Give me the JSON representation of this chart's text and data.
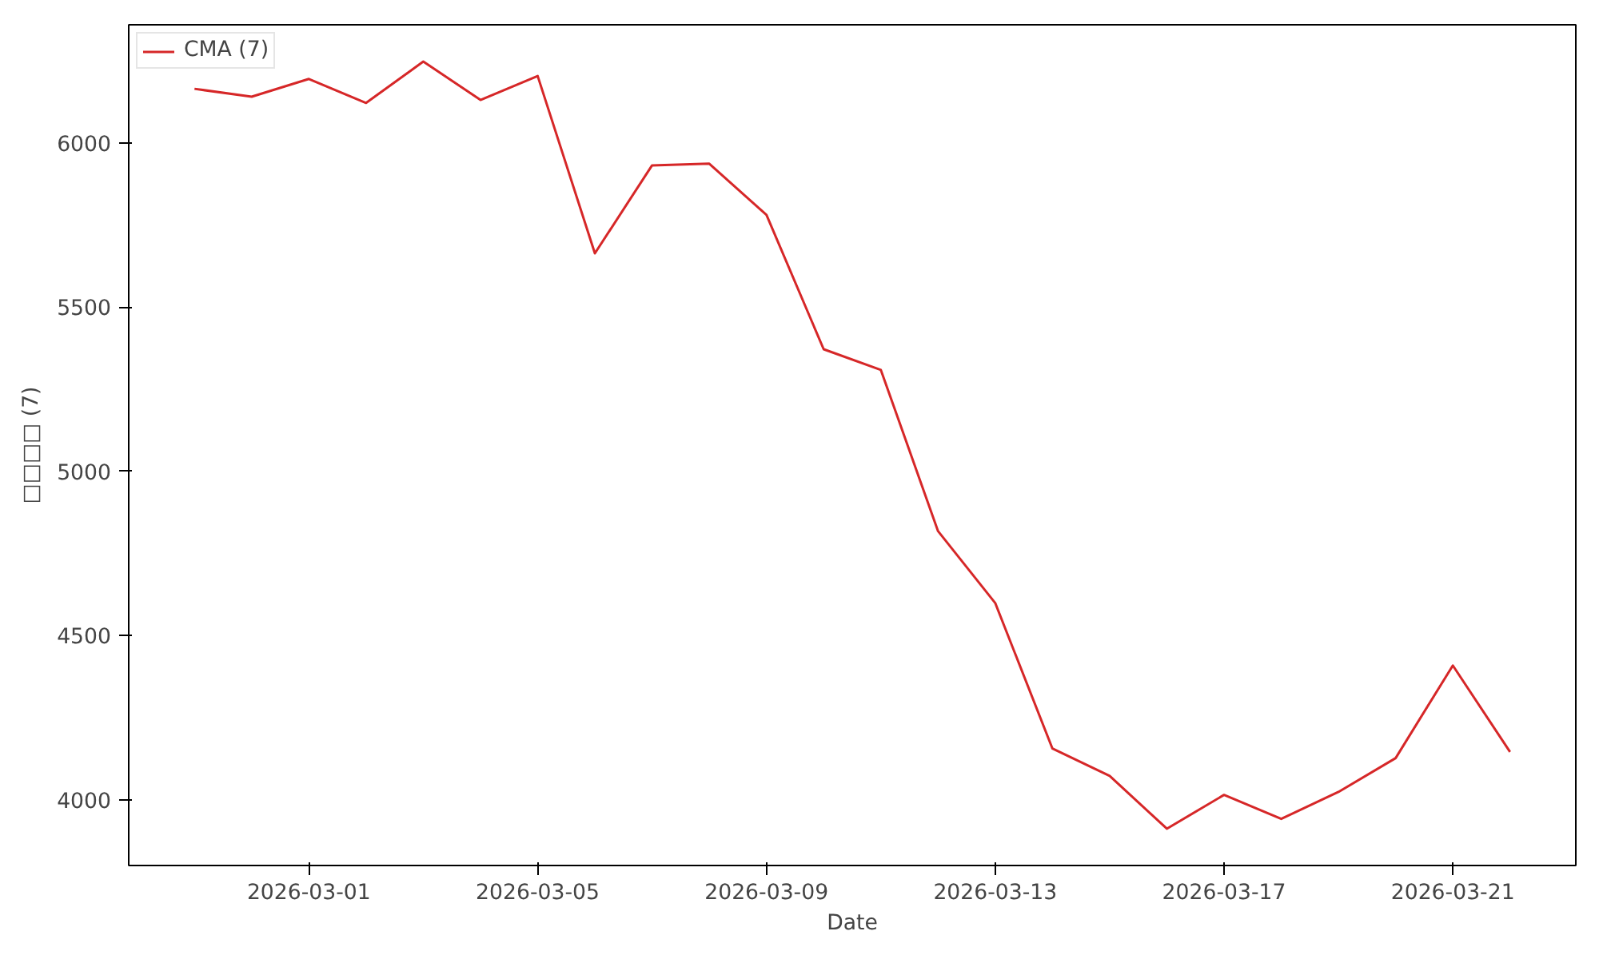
{
  "chart_data": {
    "type": "line",
    "xlabel": "Date",
    "ylabel": "□□□□ (7)",
    "x": [
      "2026-02-27",
      "2026-02-28",
      "2026-03-01",
      "2026-03-02",
      "2026-03-03",
      "2026-03-04",
      "2026-03-05",
      "2026-03-06",
      "2026-03-07",
      "2026-03-08",
      "2026-03-09",
      "2026-03-10",
      "2026-03-11",
      "2026-03-12",
      "2026-03-13",
      "2026-03-14",
      "2026-03-15",
      "2026-03-16",
      "2026-03-17",
      "2026-03-18",
      "2026-03-19",
      "2026-03-20",
      "2026-03-21",
      "2026-03-22"
    ],
    "series": [
      {
        "name": "CMA (7)",
        "color": "#d62728",
        "values": [
          6165,
          6141,
          6195,
          6122,
          6248,
          6131,
          6204,
          5664,
          5932,
          5937,
          5781,
          5372,
          5309,
          4818,
          4599,
          4156,
          4073,
          3912,
          4015,
          3942,
          4024,
          4127,
          4409,
          4146
        ]
      }
    ],
    "xlim": [
      "2026-02-25T20:24",
      "2026-03-23T03:36"
    ],
    "xticks": [
      "2026-03-01",
      "2026-03-05",
      "2026-03-09",
      "2026-03-13",
      "2026-03-17",
      "2026-03-21"
    ],
    "ylim": [
      3800,
      6360
    ],
    "yticks": [
      4000,
      4500,
      5000,
      5500,
      6000
    ],
    "grid": false,
    "legend": "top left",
    "marker": "none",
    "line_style": "solid"
  }
}
